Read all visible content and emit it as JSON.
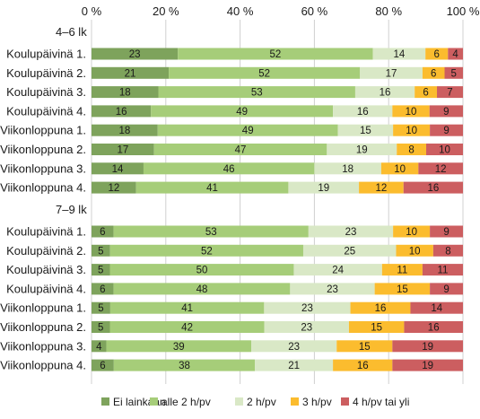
{
  "chart_data": {
    "type": "bar",
    "orientation": "horizontal",
    "stacked": true,
    "percent": true,
    "xlim": [
      0,
      100
    ],
    "x_ticks": [
      "0 %",
      "20 %",
      "40 %",
      "60 %",
      "80 %",
      "100 %"
    ],
    "grid": true,
    "legend_position": "bottom",
    "series": [
      {
        "name": "Ei lainkaan",
        "color": "#7ea35c"
      },
      {
        "name": "alle 2 h/pv",
        "color": "#a6cd79"
      },
      {
        "name": "2 h/pv",
        "color": "#d9e8c6"
      },
      {
        "name": "3 h/pv",
        "color": "#fbbc2e"
      },
      {
        "name": "4 h/pv tai yli",
        "color": "#cc5e60"
      }
    ],
    "groups": [
      {
        "label": "4–6 lk",
        "rows": [
          {
            "label": "Koulupäivinä 1.",
            "values": [
              23,
              52,
              14,
              6,
              4
            ]
          },
          {
            "label": "Koulupäivinä 2.",
            "values": [
              21,
              52,
              17,
              6,
              5
            ]
          },
          {
            "label": "Koulupäivinä 3.",
            "values": [
              18,
              53,
              16,
              6,
              7
            ]
          },
          {
            "label": "Koulupäivinä 4.",
            "values": [
              16,
              49,
              16,
              10,
              9
            ]
          },
          {
            "label": "Viikonloppuna 1.",
            "values": [
              18,
              49,
              15,
              10,
              9
            ]
          },
          {
            "label": "Viikonloppuna 2.",
            "values": [
              17,
              47,
              19,
              8,
              10
            ]
          },
          {
            "label": "Viikonloppuna 3.",
            "values": [
              14,
              46,
              18,
              10,
              12
            ]
          },
          {
            "label": "Viikonloppuna 4.",
            "values": [
              12,
              41,
              19,
              12,
              16
            ]
          }
        ]
      },
      {
        "label": "7–9 lk",
        "rows": [
          {
            "label": "Koulupäivinä 1.",
            "values": [
              6,
              53,
              23,
              10,
              9
            ]
          },
          {
            "label": "Koulupäivinä 2.",
            "values": [
              5,
              52,
              25,
              10,
              8
            ]
          },
          {
            "label": "Koulupäivinä 3.",
            "values": [
              5,
              50,
              24,
              11,
              11
            ]
          },
          {
            "label": "Koulupäivinä 4.",
            "values": [
              6,
              48,
              23,
              15,
              9
            ]
          },
          {
            "label": "Viikonloppuna 1.",
            "values": [
              5,
              41,
              23,
              16,
              14
            ]
          },
          {
            "label": "Viikonloppuna 2.",
            "values": [
              5,
              42,
              23,
              15,
              16
            ]
          },
          {
            "label": "Viikonloppuna 3.",
            "values": [
              4,
              39,
              23,
              15,
              19
            ]
          },
          {
            "label": "Viikonloppuna 4.",
            "values": [
              6,
              38,
              21,
              16,
              19
            ]
          }
        ]
      }
    ]
  }
}
